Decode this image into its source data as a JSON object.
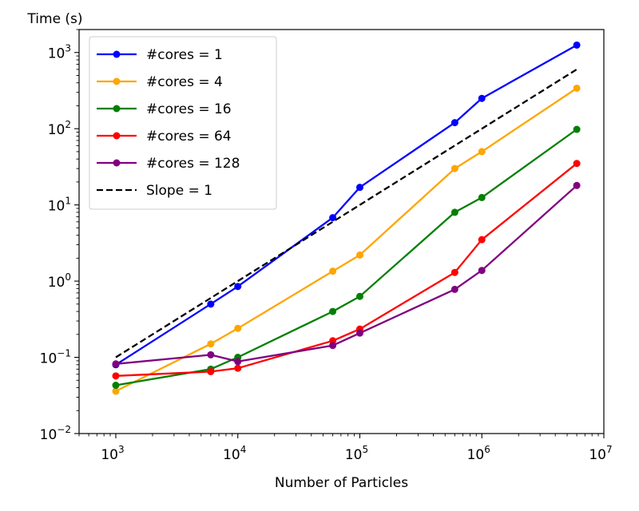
{
  "chart_data": {
    "type": "line",
    "title": "",
    "xlabel": "Number of Particles",
    "ylabel": "Time (s)",
    "xscale": "log",
    "yscale": "log",
    "xlim": [
      500,
      10000000
    ],
    "ylim": [
      0.01,
      2000
    ],
    "x_ticks": [
      {
        "value": 1000,
        "base": "10",
        "exp": "3"
      },
      {
        "value": 10000,
        "base": "10",
        "exp": "4"
      },
      {
        "value": 100000,
        "base": "10",
        "exp": "5"
      },
      {
        "value": 1000000,
        "base": "10",
        "exp": "6"
      },
      {
        "value": 10000000,
        "base": "10",
        "exp": "7"
      }
    ],
    "y_ticks": [
      {
        "value": 0.01,
        "base": "10",
        "exp": "−2"
      },
      {
        "value": 0.1,
        "base": "10",
        "exp": "−1"
      },
      {
        "value": 1,
        "base": "10",
        "exp": "0"
      },
      {
        "value": 10,
        "base": "10",
        "exp": "1"
      },
      {
        "value": 100,
        "base": "10",
        "exp": "2"
      },
      {
        "value": 1000,
        "base": "10",
        "exp": "3"
      }
    ],
    "legend_position": "upper-left",
    "grid": false,
    "series": [
      {
        "name": "#cores = 1",
        "color": "#0000ff",
        "style": "solid",
        "marker": true,
        "x": [
          1000,
          6000,
          10000,
          60000,
          100000,
          600000,
          1000000,
          6000000
        ],
        "y": [
          0.08,
          0.5,
          0.85,
          6.8,
          17,
          120,
          250,
          1250
        ]
      },
      {
        "name": "#cores = 4",
        "color": "#ffa500",
        "style": "solid",
        "marker": true,
        "x": [
          1000,
          6000,
          10000,
          60000,
          100000,
          600000,
          1000000,
          6000000
        ],
        "y": [
          0.036,
          0.15,
          0.24,
          1.35,
          2.2,
          30,
          50,
          340
        ]
      },
      {
        "name": "#cores = 16",
        "color": "#008000",
        "style": "solid",
        "marker": true,
        "x": [
          1000,
          6000,
          10000,
          60000,
          100000,
          600000,
          1000000,
          6000000
        ],
        "y": [
          0.043,
          0.07,
          0.1,
          0.4,
          0.63,
          8,
          12.5,
          98
        ]
      },
      {
        "name": "#cores = 64",
        "color": "#ff0000",
        "style": "solid",
        "marker": true,
        "x": [
          1000,
          6000,
          10000,
          60000,
          100000,
          600000,
          1000000,
          6000000
        ],
        "y": [
          0.057,
          0.065,
          0.072,
          0.165,
          0.235,
          1.3,
          3.5,
          35
        ]
      },
      {
        "name": "#cores = 128",
        "color": "#800080",
        "style": "solid",
        "marker": true,
        "x": [
          1000,
          6000,
          10000,
          60000,
          100000,
          600000,
          1000000,
          6000000
        ],
        "y": [
          0.082,
          0.108,
          0.088,
          0.143,
          0.208,
          0.78,
          1.38,
          18
        ]
      },
      {
        "name": "Slope = 1",
        "color": "#000000",
        "style": "dashed",
        "marker": false,
        "x": [
          1000,
          6000000
        ],
        "y": [
          0.1,
          600
        ]
      }
    ]
  }
}
